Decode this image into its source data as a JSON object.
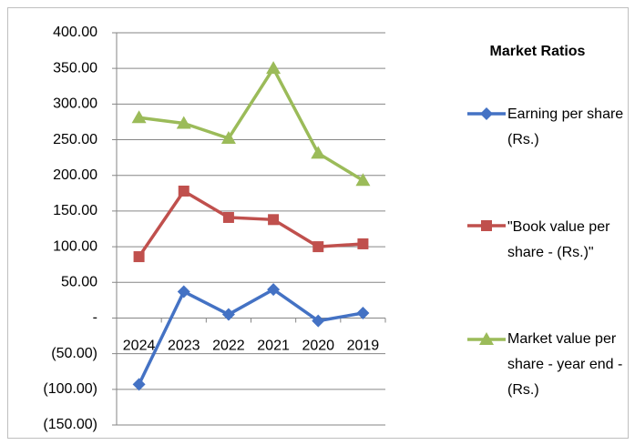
{
  "chart_data": {
    "type": "line",
    "title": "Market Ratios",
    "categories": [
      "2024",
      "2023",
      "2022",
      "2021",
      "2020",
      "2019"
    ],
    "series": [
      {
        "name": "Earning per share (Rs.)",
        "color": "#4472c4",
        "marker": "diamond",
        "values": [
          -93,
          37,
          5,
          40,
          -4,
          7
        ]
      },
      {
        "name": "\"Book value per share - (Rs.)\"",
        "color": "#c0504d",
        "marker": "square",
        "values": [
          86,
          178,
          141,
          138,
          100,
          104
        ]
      },
      {
        "name": "Market value per share - year end - (Rs.)",
        "color": "#9bbb59",
        "marker": "triangle",
        "values": [
          281,
          273,
          252,
          350,
          231,
          193
        ]
      }
    ],
    "ylim": [
      -150,
      400
    ],
    "yticks": [
      {
        "value": -150,
        "label": "(150.00)"
      },
      {
        "value": -100,
        "label": "(100.00)"
      },
      {
        "value": -50,
        "label": "(50.00)"
      },
      {
        "value": 0,
        "label": "-"
      },
      {
        "value": 50,
        "label": "50.00"
      },
      {
        "value": 100,
        "label": "100.00"
      },
      {
        "value": 150,
        "label": "150.00"
      },
      {
        "value": 200,
        "label": "200.00"
      },
      {
        "value": 250,
        "label": "250.00"
      },
      {
        "value": 300,
        "label": "300.00"
      },
      {
        "value": 350,
        "label": "350.00"
      },
      {
        "value": 400,
        "label": "400.00"
      }
    ],
    "grid": true,
    "legend": "right"
  }
}
